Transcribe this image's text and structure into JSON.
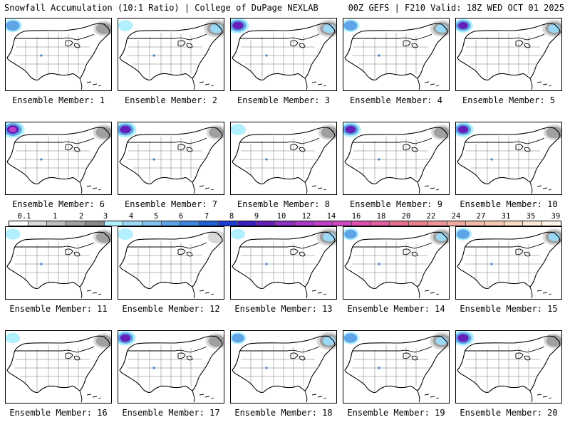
{
  "header": {
    "title": "Snowfall Accumulation (10:1 Ratio) | College of DuPage NEXLAB",
    "run_info": "00Z GEFS | F210 Valid: 18Z WED OCT 01 2025"
  },
  "panels": [
    {
      "label": "Ensemble Member: 1",
      "nw": 0.55,
      "ne": 0.55,
      "rockies": true
    },
    {
      "label": "Ensemble Member: 2",
      "nw": 0.25,
      "ne": 0.85,
      "rockies": true
    },
    {
      "label": "Ensemble Member: 3",
      "nw": 0.85,
      "ne": 0.8,
      "rockies": true
    },
    {
      "label": "Ensemble Member: 4",
      "nw": 0.5,
      "ne": 0.7,
      "rockies": true
    },
    {
      "label": "Ensemble Member: 5",
      "nw": 0.65,
      "ne": 0.75,
      "rockies": false
    },
    {
      "label": "Ensemble Member: 6",
      "nw": 1.0,
      "ne": 0.6,
      "rockies": true
    },
    {
      "label": "Ensemble Member: 7",
      "nw": 0.85,
      "ne": 0.5,
      "rockies": true
    },
    {
      "label": "Ensemble Member: 8",
      "nw": 0.3,
      "ne": 0.6,
      "rockies": true
    },
    {
      "label": "Ensemble Member: 9",
      "nw": 0.75,
      "ne": 0.55,
      "rockies": true
    },
    {
      "label": "Ensemble Member: 10",
      "nw": 0.75,
      "ne": 0.6,
      "rockies": true
    },
    {
      "label": "Ensemble Member: 11",
      "nw": 0.25,
      "ne": 0.55,
      "rockies": true
    },
    {
      "label": "Ensemble Member: 12",
      "nw": 0.3,
      "ne": 0.3,
      "rockies": false
    },
    {
      "label": "Ensemble Member: 13",
      "nw": 0.2,
      "ne": 0.85,
      "rockies": true
    },
    {
      "label": "Ensemble Member: 14",
      "nw": 0.4,
      "ne": 0.7,
      "rockies": true
    },
    {
      "label": "Ensemble Member: 15",
      "nw": 0.45,
      "ne": 0.7,
      "rockies": true
    },
    {
      "label": "Ensemble Member: 16",
      "nw": 0.2,
      "ne": 0.55,
      "rockies": false
    },
    {
      "label": "Ensemble Member: 17",
      "nw": 0.75,
      "ne": 0.6,
      "rockies": true
    },
    {
      "label": "Ensemble Member: 18",
      "nw": 0.4,
      "ne": 0.85,
      "rockies": true
    },
    {
      "label": "Ensemble Member: 19",
      "nw": 0.45,
      "ne": 0.75,
      "rockies": true
    },
    {
      "label": "Ensemble Member: 20",
      "nw": 0.85,
      "ne": 0.55,
      "rockies": false
    }
  ],
  "colorbar": {
    "labels": [
      "0.1",
      "1",
      "2",
      "3",
      "4",
      "5",
      "6",
      "7",
      "8",
      "9",
      "10",
      "12",
      "14",
      "16",
      "18",
      "20",
      "22",
      "24",
      "27",
      "31",
      "35",
      "39"
    ],
    "colors": [
      "#ffffff",
      "#d9d9d9",
      "#bdbdbd",
      "#a0a0a0",
      "#888888",
      "#b3f0ff",
      "#9bd8f5",
      "#80c0ee",
      "#5ea4e6",
      "#3f84dd",
      "#2060d2",
      "#1e3ad0",
      "#3b20c0",
      "#6420b8",
      "#8c30c2",
      "#a83ac8",
      "#c040c8",
      "#d048c0",
      "#dc50b0",
      "#e060a0",
      "#e47090",
      "#e88090",
      "#ec9498",
      "#f0a8a0",
      "#f2b8a8",
      "#f5c8b0",
      "#f8d8c0",
      "#fbe8d8",
      "#fff4e8"
    ]
  }
}
